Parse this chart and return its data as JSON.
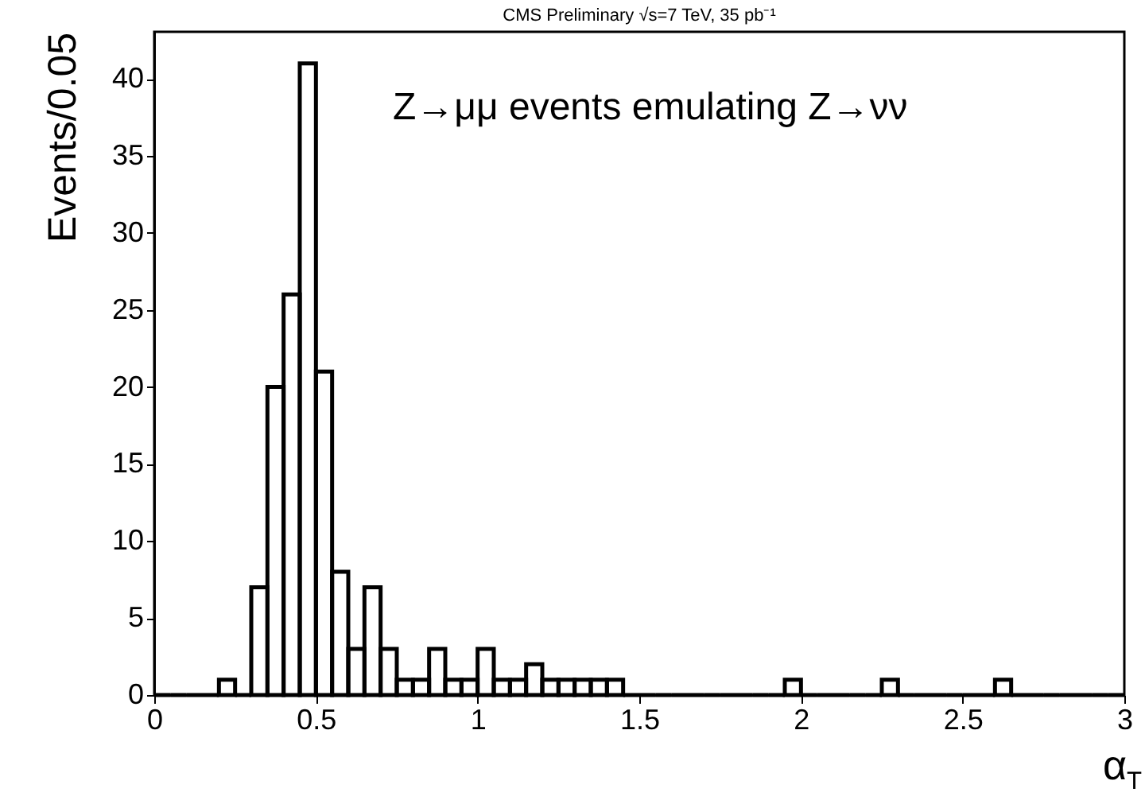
{
  "chart_data": {
    "type": "histogram",
    "title": "CMS Preliminary √s=7 TeV, 35 pb⁻¹",
    "xlabel": "α$_{T}$",
    "ylabel": "Events/0.05",
    "annotations": [
      "Z→μμ events emulating Z→νν"
    ],
    "bins": [
      0,
      0.05,
      0.1,
      0.15,
      0.2,
      0.25,
      0.3,
      0.35,
      0.4,
      0.45,
      0.5,
      0.55,
      0.6,
      0.65,
      0.7,
      0.75,
      0.8,
      0.85,
      0.9,
      0.95,
      1,
      1.05,
      1.1,
      1.15,
      1.2,
      1.25,
      1.3,
      1.35,
      1.4,
      1.45,
      1.5,
      1.55,
      1.6,
      1.65,
      1.7,
      1.75,
      1.8,
      1.85,
      1.9,
      1.95,
      2,
      2.05,
      2.1,
      2.15,
      2.2,
      2.25,
      2.3,
      2.35,
      2.4,
      2.45,
      2.5,
      2.55,
      2.6,
      2.65,
      2.7,
      2.75,
      2.8,
      2.85,
      2.9,
      2.95,
      3
    ],
    "values": [
      0,
      0,
      0,
      0,
      1,
      0,
      7,
      20,
      26,
      41,
      21,
      8,
      3,
      7,
      3,
      1,
      1,
      3,
      1,
      1,
      3,
      1,
      1,
      2,
      1,
      1,
      1,
      1,
      1,
      0,
      0,
      0,
      0,
      0,
      0,
      0,
      0,
      0,
      0,
      1,
      0,
      0,
      0,
      0,
      0,
      1,
      0,
      0,
      0,
      0,
      0,
      0,
      1,
      0,
      0,
      0,
      0,
      0,
      0,
      0
    ],
    "color": "#000000",
    "xlim": [
      0,
      3
    ],
    "xticks": [
      0,
      0.5,
      1,
      1.5,
      2,
      2.5,
      3
    ],
    "ylim": [
      0,
      43.05
    ],
    "yticks": [
      0,
      5,
      10,
      15,
      20,
      25,
      30,
      35,
      40
    ],
    "grid": false
  }
}
